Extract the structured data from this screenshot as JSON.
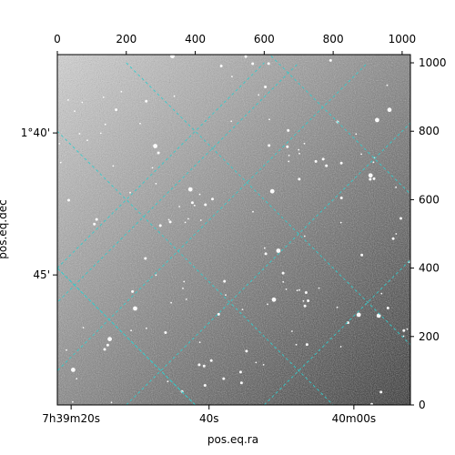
{
  "chart_data": {
    "type": "heatmap",
    "title": "",
    "image": "astronomical-grayscale-field",
    "xlabel": "pos.eq.ra",
    "ylabel": "pos.eq.dec",
    "pixel_axes": {
      "x": {
        "range": [
          0,
          1024
        ],
        "ticks": [
          0,
          200,
          400,
          600,
          800,
          1000
        ]
      },
      "y": {
        "range": [
          0,
          1024
        ],
        "ticks": [
          0,
          200,
          400,
          600,
          800,
          1000
        ]
      }
    },
    "world_ticks": {
      "ra_bottom": [
        {
          "text": "7h39m20s",
          "px": 40
        },
        {
          "text": "40s",
          "px": 440
        },
        {
          "text": "40m00s",
          "px": 860
        }
      ],
      "dec_left": [
        {
          "text": "1°40'",
          "py": 795
        },
        {
          "text": "45'",
          "py": 380
        }
      ]
    },
    "grid": true,
    "grid_color": "#33cccc",
    "colormap": "gray"
  }
}
